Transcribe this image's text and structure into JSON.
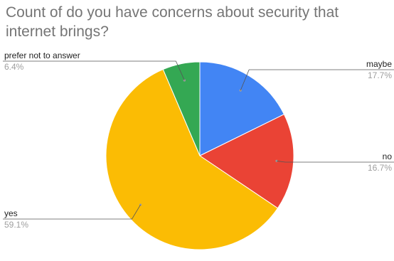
{
  "chart_data": {
    "type": "pie",
    "title": "Count of do you have concerns about security that internet brings?",
    "slices": [
      {
        "label": "maybe",
        "value": 17.7,
        "pct_label": "17.7%",
        "color": "#4285F4"
      },
      {
        "label": "no",
        "value": 16.7,
        "pct_label": "16.7%",
        "color": "#EA4335"
      },
      {
        "label": "yes",
        "value": 59.1,
        "pct_label": "59.1%",
        "color": "#FBBC04"
      },
      {
        "label": "prefer not to answer",
        "value": 6.4,
        "pct_label": "6.4%",
        "color": "#34A853"
      }
    ],
    "legend": "none",
    "labels": "outside-with-leader-lines"
  }
}
